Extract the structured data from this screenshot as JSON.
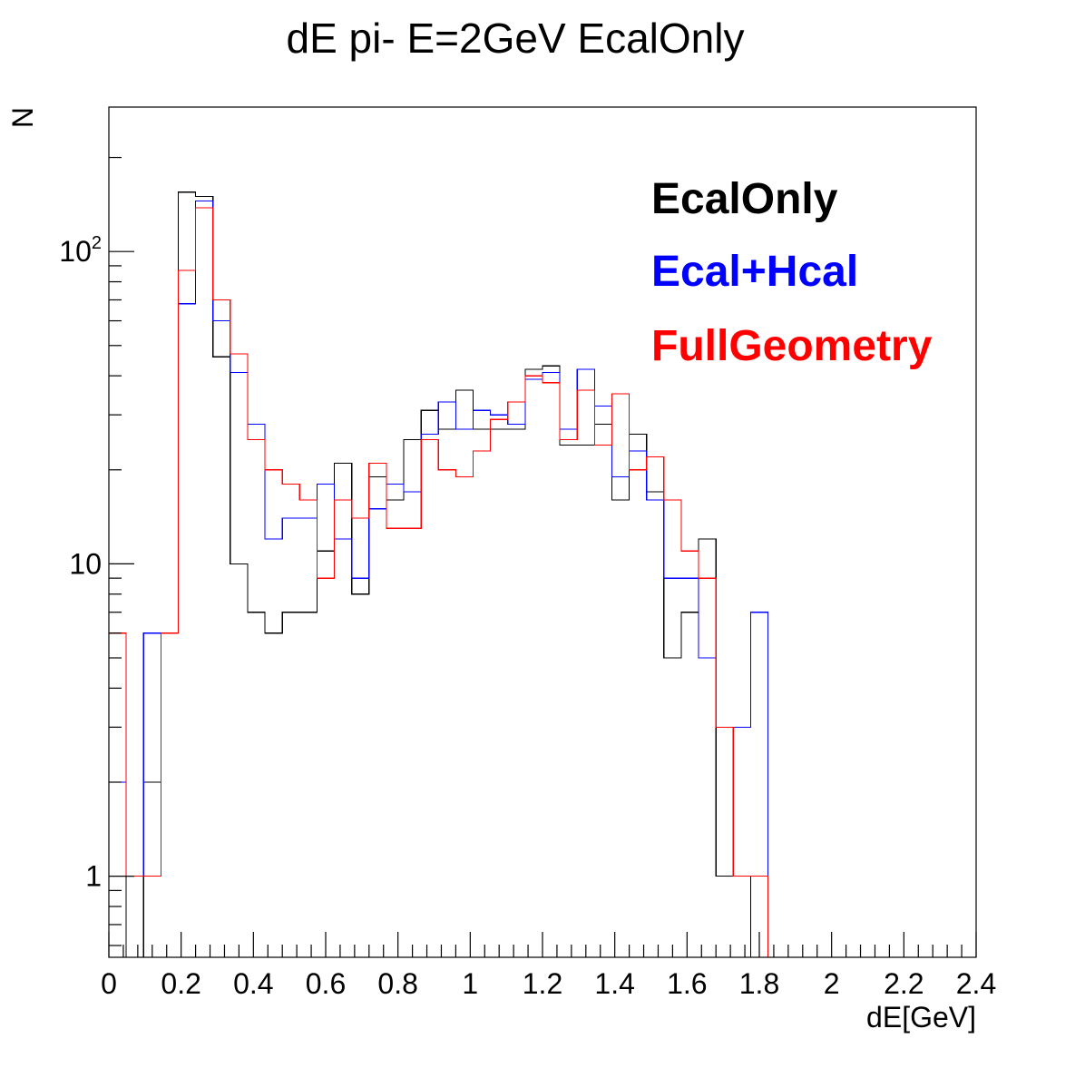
{
  "chart_data": {
    "type": "histogram",
    "title": "dE pi- E=2GeV EcalOnly",
    "xlabel": "dE[GeV]",
    "ylabel": "N",
    "xlim": [
      0,
      2.4
    ],
    "ylim": [
      0.55,
      290
    ],
    "yscale": "log",
    "bin_width": 0.048,
    "x_ticks": [
      "0",
      "0.2",
      "0.4",
      "0.6",
      "0.8",
      "1",
      "1.2",
      "1.4",
      "1.6",
      "1.8",
      "2",
      "2.2",
      "2.4"
    ],
    "y_ticks": [
      {
        "value": 1,
        "label": "1"
      },
      {
        "value": 10,
        "label": "10"
      },
      {
        "value": 100,
        "base": "10",
        "exp": "2"
      }
    ],
    "legend_position": "top-right",
    "grid": false,
    "series": [
      {
        "name": "EcalOnly",
        "color": "#000000",
        "values": [
          1,
          0,
          2,
          6,
          155,
          150,
          46,
          10,
          7,
          6,
          7,
          7,
          11,
          21,
          8,
          19,
          16,
          25,
          31,
          27,
          36,
          27,
          27,
          27,
          42,
          43,
          24,
          24,
          28,
          16,
          26,
          17,
          5,
          7,
          12,
          1,
          1,
          0,
          0,
          0,
          0,
          0,
          0,
          0,
          0,
          0,
          0,
          0,
          0,
          0
        ]
      },
      {
        "name": "Ecal+Hcal",
        "color": "#0000ff",
        "values": [
          2,
          1,
          6,
          6,
          68,
          145,
          60,
          41,
          28,
          12,
          14,
          14,
          18,
          12,
          9,
          15,
          18,
          17,
          26,
          33,
          27,
          31,
          30,
          28,
          39,
          41,
          27,
          42,
          32,
          19,
          23,
          16,
          9,
          9,
          5,
          3,
          3,
          7,
          0,
          0,
          0,
          0,
          0,
          0,
          0,
          0,
          0,
          0,
          0,
          0
        ]
      },
      {
        "name": "FullGeometry",
        "color": "#ff0000",
        "values": [
          6,
          1,
          1,
          6,
          87,
          138,
          70,
          47,
          25,
          20,
          18,
          16,
          9,
          16,
          14,
          21,
          13,
          13,
          25,
          20,
          19,
          23,
          29,
          33,
          40,
          38,
          25,
          36,
          24,
          35,
          20,
          22,
          16,
          11,
          9,
          3,
          1,
          1,
          0,
          0,
          0,
          0,
          0,
          0,
          0,
          0,
          0,
          0,
          0,
          0
        ]
      }
    ]
  }
}
